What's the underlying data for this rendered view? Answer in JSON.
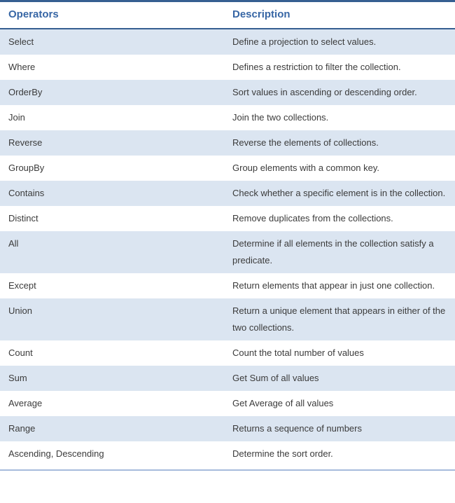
{
  "table": {
    "columns": {
      "operators": "Operators",
      "description": "Description"
    },
    "rows": [
      {
        "operator": "Select",
        "description": "Define a projection to select values."
      },
      {
        "operator": "Where",
        "description": "Defines a restriction to filter the collection."
      },
      {
        "operator": "OrderBy",
        "description": "Sort values in ascending or descending order."
      },
      {
        "operator": "Join",
        "description": "Join the two collections."
      },
      {
        "operator": "Reverse",
        "description": "Reverse the elements of collections."
      },
      {
        "operator": "GroupBy",
        "description": "Group elements with a common key."
      },
      {
        "operator": "Contains",
        "description": "Check whether a specific element is in the collection."
      },
      {
        "operator": "Distinct",
        "description": "Remove duplicates from the collections."
      },
      {
        "operator": "All",
        "description": "Determine if all elements in the collection satisfy a predicate."
      },
      {
        "operator": "Except",
        "description": "Return elements that appear in just one collection."
      },
      {
        "operator": "Union",
        "description": "Return a unique element that appears in either of the two collections."
      },
      {
        "operator": "Count",
        "description": "Count the total number of values"
      },
      {
        "operator": "Sum",
        "description": "Get Sum of all values"
      },
      {
        "operator": "Average",
        "description": "Get Average of all values"
      },
      {
        "operator": "Range",
        "description": "Returns a sequence of numbers"
      },
      {
        "operator": "Ascending, Descending",
        "description": "Determine the sort order."
      }
    ],
    "colors": {
      "top_border": "#365F91",
      "header_text": "#3766A5",
      "header_underline": "#365F91",
      "row_shading": "#DBE5F1",
      "body_text": "#3B3B3B",
      "bottom_rule": "#A6BBDC"
    }
  }
}
